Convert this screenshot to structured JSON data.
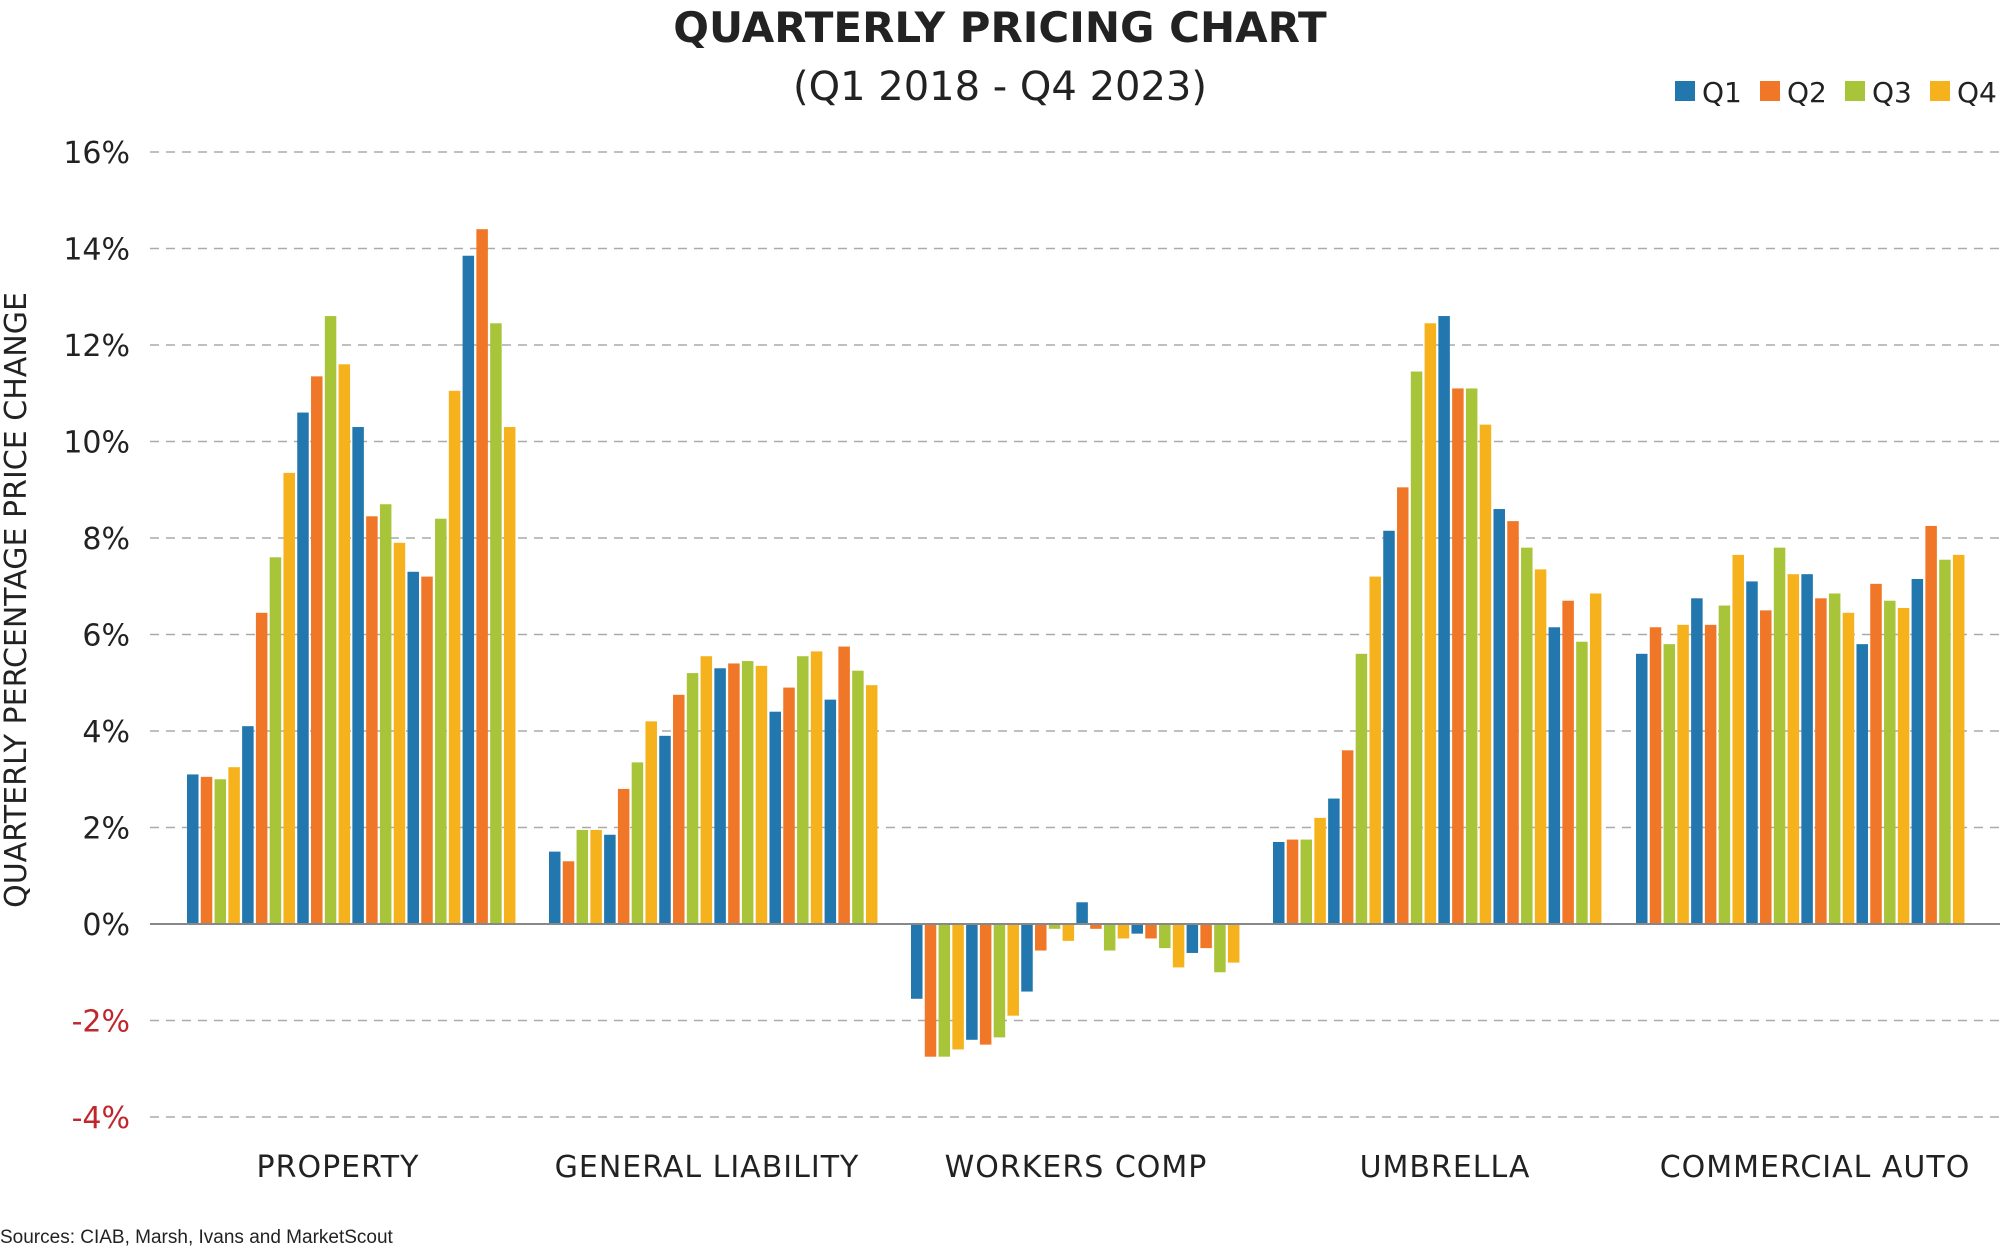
{
  "chart_data": {
    "type": "bar",
    "title": "QUARTERLY PRICING CHART",
    "subtitle": "(Q1 2018 - Q4 2023)",
    "ylabel": "QUARTERLY PERCENTAGE PRICE CHANGE",
    "ylim": [
      -4,
      16
    ],
    "yticks": [
      "16%",
      "14%",
      "12%",
      "10%",
      "8%",
      "6%",
      "4%",
      "2%",
      "0%",
      "-2%",
      "-4%"
    ],
    "grid": true,
    "legend_position": "top-right",
    "legend": [
      "Q1",
      "Q2",
      "Q3",
      "Q4"
    ],
    "categories": [
      "PROPERTY",
      "GENERAL LIABILITY",
      "WORKERS COMP",
      "UMBRELLA",
      "COMMERCIAL AUTO"
    ],
    "source": "Sources: CIAB, Marsh, Ivans and MarketScout",
    "colors": {
      "Q1": "#2277AE",
      "Q2": "#F07727",
      "Q3": "#A8C53A",
      "Q4": "#F5B21C",
      "negative_tick": "#C0272D",
      "grid": "#AAAAAA",
      "text": "#222222"
    },
    "series_by_category": [
      {
        "category": "PROPERTY",
        "values": [
          3.1,
          3.05,
          3.0,
          3.25,
          4.1,
          6.45,
          7.6,
          9.35,
          10.6,
          11.35,
          12.6,
          11.6,
          10.3,
          8.45,
          8.7,
          7.9,
          7.3,
          7.2,
          8.4,
          11.05,
          13.85,
          14.4,
          12.45,
          10.3
        ]
      },
      {
        "category": "GENERAL LIABILITY",
        "values": [
          1.5,
          1.3,
          1.95,
          1.95,
          1.85,
          2.8,
          3.35,
          4.2,
          3.9,
          4.75,
          5.2,
          5.55,
          5.3,
          5.4,
          5.45,
          5.35,
          4.4,
          4.9,
          5.55,
          5.65,
          4.65,
          5.75,
          5.25,
          4.95
        ]
      },
      {
        "category": "WORKERS COMP",
        "values": [
          -1.55,
          -2.75,
          -2.75,
          -2.6,
          -2.4,
          -2.5,
          -2.35,
          -1.9,
          -1.4,
          -0.55,
          -0.1,
          -0.35,
          0.45,
          -0.1,
          -0.55,
          -0.3,
          -0.2,
          -0.3,
          -0.5,
          -0.9,
          -0.6,
          -0.5,
          -1.0,
          -0.8
        ]
      },
      {
        "category": "UMBRELLA",
        "values": [
          1.7,
          1.75,
          1.75,
          2.2,
          2.6,
          3.6,
          5.6,
          7.2,
          8.15,
          9.05,
          11.45,
          12.45,
          12.6,
          11.1,
          11.1,
          10.35,
          8.6,
          8.35,
          7.8,
          7.35,
          6.15,
          6.7,
          5.85,
          6.85
        ]
      },
      {
        "category": "COMMERCIAL AUTO",
        "values": [
          5.6,
          6.15,
          5.8,
          6.2,
          6.75,
          6.2,
          6.6,
          7.65,
          7.1,
          6.5,
          7.8,
          7.25,
          7.25,
          6.75,
          6.85,
          6.45,
          5.8,
          7.05,
          6.7,
          6.55,
          7.15,
          8.25,
          7.55,
          7.65
        ]
      }
    ]
  }
}
